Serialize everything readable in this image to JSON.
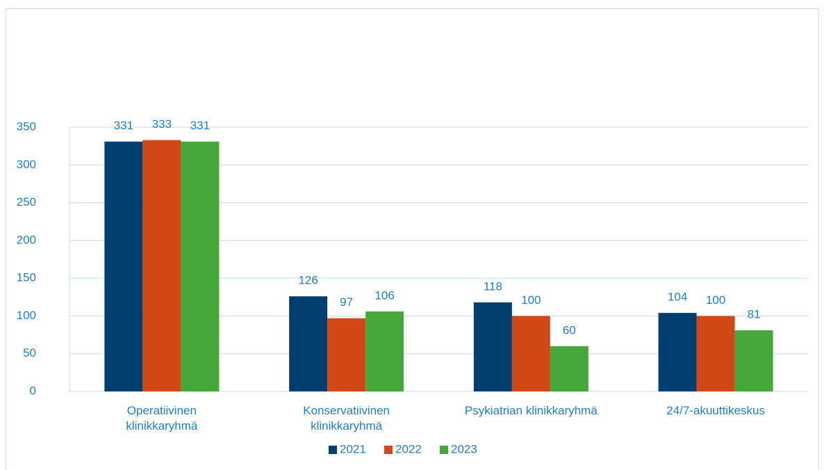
{
  "chart_data": {
    "type": "bar",
    "categories": [
      "Operatiivinen\nklinikkaryhmä",
      "Konservatiivinen\nklinikkaryhmä",
      "Psykiatrian klinikkaryhmä",
      "24/7-akuuttikeskus"
    ],
    "series": [
      {
        "name": "2021",
        "color": "#003f6f",
        "values": [
          331,
          126,
          118,
          104
        ]
      },
      {
        "name": "2022",
        "color": "#d14816",
        "values": [
          333,
          97,
          100,
          100
        ]
      },
      {
        "name": "2023",
        "color": "#46a83b",
        "values": [
          331,
          106,
          60,
          81
        ]
      }
    ],
    "ylim": [
      0,
      350
    ],
    "yticks": [
      0,
      50,
      100,
      150,
      200,
      250,
      300,
      350
    ],
    "grid": true,
    "legend": "bottom"
  }
}
